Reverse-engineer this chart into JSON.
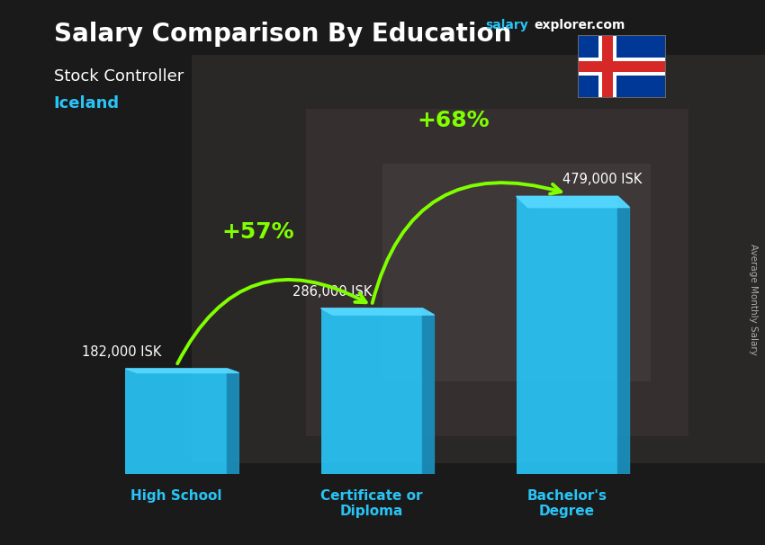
{
  "title": "Salary Comparison By Education",
  "subtitle": "Stock Controller",
  "country": "Iceland",
  "ylabel": "Average Monthly Salary",
  "categories": [
    "High School",
    "Certificate or\nDiploma",
    "Bachelor's\nDegree"
  ],
  "values": [
    182000,
    286000,
    479000
  ],
  "value_labels": [
    "182,000 ISK",
    "286,000 ISK",
    "479,000 ISK"
  ],
  "bar_color_main": "#29c4f6",
  "bar_color_right": "#1a90c0",
  "bar_color_top": "#55d8ff",
  "pct_labels": [
    "+57%",
    "+68%"
  ],
  "website_salary": "salary",
  "website_rest": "explorer.com",
  "background_color": "#3a3a3a",
  "title_color": "#ffffff",
  "subtitle_color": "#ffffff",
  "country_color": "#29c4f6",
  "value_label_color": "#ffffff",
  "pct_color": "#7fff00",
  "arrow_color": "#7fff00",
  "ylabel_color": "#aaaaaa",
  "xtick_color": "#29c4f6",
  "website_salary_color": "#29c4f6",
  "website_rest_color": "#ffffff"
}
